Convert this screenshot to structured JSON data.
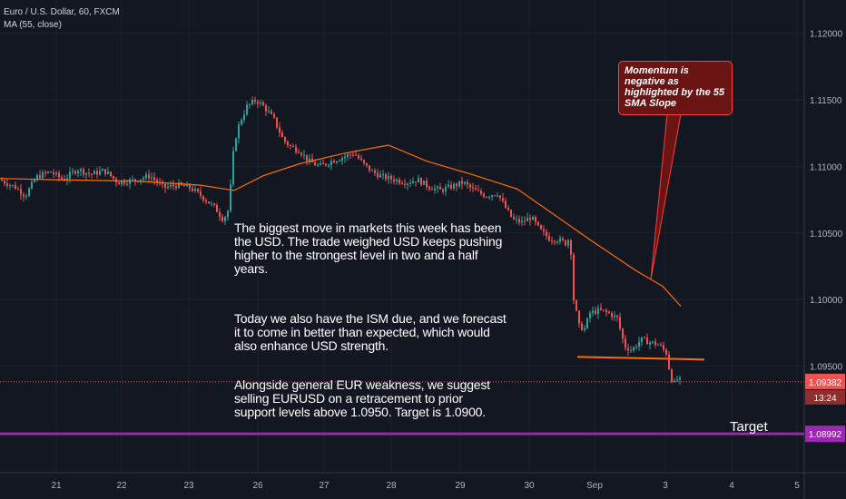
{
  "header": {
    "symbol": "Euro / U.S. Dollar, 60, FXCM",
    "indicator": "MA (55, close)"
  },
  "notes": {
    "p1": "The biggest move in markets this week has been the USD. The trade weighed USD keeps pushing higher to the strongest level in two and a half years.",
    "p2": "Today we also have the ISM due, and we forecast it to come in better than expected, which would also enhance USD strength.",
    "p3": "Alongside general EUR weakness, we suggest selling EURUSD on a retracement to prior support levels above 1.0950. Target is 1.0900."
  },
  "callout": {
    "text": "Momentum is negative as highlighted by the 55 SMA Slope"
  },
  "target_label": "Target",
  "colors": {
    "background": "#131722",
    "up": "#26a69a",
    "down": "#ef5350",
    "ma": "#ff6d00",
    "target_line": "#9c27b0",
    "support_line": "#ff6d00",
    "callout_border": "#ff3b3b",
    "callout_fill": "#6b1414",
    "current_price_tag": "#ef5350",
    "target_tag": "#9c27b0"
  },
  "chart_data": {
    "type": "candlestick",
    "ylim": [
      1.087,
      1.1225
    ],
    "y_ticks": [
      "1.12000",
      "1.11500",
      "1.11000",
      "1.10500",
      "1.10000",
      "1.09500"
    ],
    "x_ticks": [
      "21",
      "22",
      "23",
      "26",
      "27",
      "28",
      "29",
      "30",
      "Sep",
      "3",
      "4",
      "5"
    ],
    "current_price": {
      "value": "1.09382",
      "countdown": "13:24"
    },
    "target_price": {
      "value": "1.08992"
    },
    "support_level": 1.0957,
    "ma_period": 55,
    "price_path": [
      [
        0,
        1.109
      ],
      [
        18,
        1.1084
      ],
      [
        28,
        1.1078
      ],
      [
        40,
        1.1092
      ],
      [
        55,
        1.1096
      ],
      [
        70,
        1.109
      ],
      [
        85,
        1.1098
      ],
      [
        100,
        1.1094
      ],
      [
        115,
        1.1097
      ],
      [
        130,
        1.1088
      ],
      [
        150,
        1.109
      ],
      [
        165,
        1.1093
      ],
      [
        180,
        1.1084
      ],
      [
        195,
        1.1086
      ],
      [
        210,
        1.1084
      ],
      [
        225,
        1.1076
      ],
      [
        238,
        1.1068
      ],
      [
        246,
        1.106
      ],
      [
        252,
        1.1068
      ],
      [
        258,
        1.1118
      ],
      [
        264,
        1.1133
      ],
      [
        272,
        1.1145
      ],
      [
        282,
        1.115
      ],
      [
        292,
        1.1144
      ],
      [
        302,
        1.1135
      ],
      [
        312,
        1.112
      ],
      [
        320,
        1.1115
      ],
      [
        330,
        1.1112
      ],
      [
        340,
        1.1104
      ],
      [
        352,
        1.11
      ],
      [
        365,
        1.1104
      ],
      [
        378,
        1.1107
      ],
      [
        390,
        1.111
      ],
      [
        400,
        1.1102
      ],
      [
        410,
        1.1096
      ],
      [
        422,
        1.1092
      ],
      [
        435,
        1.109
      ],
      [
        448,
        1.1088
      ],
      [
        460,
        1.109
      ],
      [
        472,
        1.1085
      ],
      [
        485,
        1.1082
      ],
      [
        498,
        1.1085
      ],
      [
        510,
        1.1088
      ],
      [
        522,
        1.1082
      ],
      [
        535,
        1.1078
      ],
      [
        548,
        1.108
      ],
      [
        556,
        1.107
      ],
      [
        565,
        1.106
      ],
      [
        575,
        1.1058
      ],
      [
        585,
        1.1062
      ],
      [
        595,
        1.1052
      ],
      [
        605,
        1.1046
      ],
      [
        615,
        1.1045
      ],
      [
        624,
        1.1042
      ],
      [
        628,
        1.1048
      ],
      [
        632,
        1.1
      ],
      [
        638,
        1.098
      ],
      [
        644,
        1.0978
      ],
      [
        650,
        1.099
      ],
      [
        660,
        1.0992
      ],
      [
        670,
        1.099
      ],
      [
        680,
        1.0986
      ],
      [
        688,
        1.0965
      ],
      [
        696,
        1.0962
      ],
      [
        706,
        1.097
      ],
      [
        716,
        1.0968
      ],
      [
        726,
        1.0966
      ],
      [
        734,
        1.096
      ],
      [
        738,
        1.0945
      ],
      [
        742,
        1.0936
      ],
      [
        746,
        1.094
      ],
      [
        752,
        1.0938
      ]
    ],
    "ma_path": [
      [
        0,
        1.1091
      ],
      [
        60,
        1.109
      ],
      [
        150,
        1.1089
      ],
      [
        220,
        1.1086
      ],
      [
        258,
        1.1082
      ],
      [
        290,
        1.1093
      ],
      [
        330,
        1.1102
      ],
      [
        380,
        1.111
      ],
      [
        428,
        1.1116
      ],
      [
        470,
        1.1104
      ],
      [
        520,
        1.1094
      ],
      [
        570,
        1.1083
      ],
      [
        610,
        1.1064
      ],
      [
        650,
        1.1045
      ],
      [
        700,
        1.1022
      ],
      [
        730,
        1.101
      ],
      [
        750,
        1.0995
      ]
    ]
  }
}
